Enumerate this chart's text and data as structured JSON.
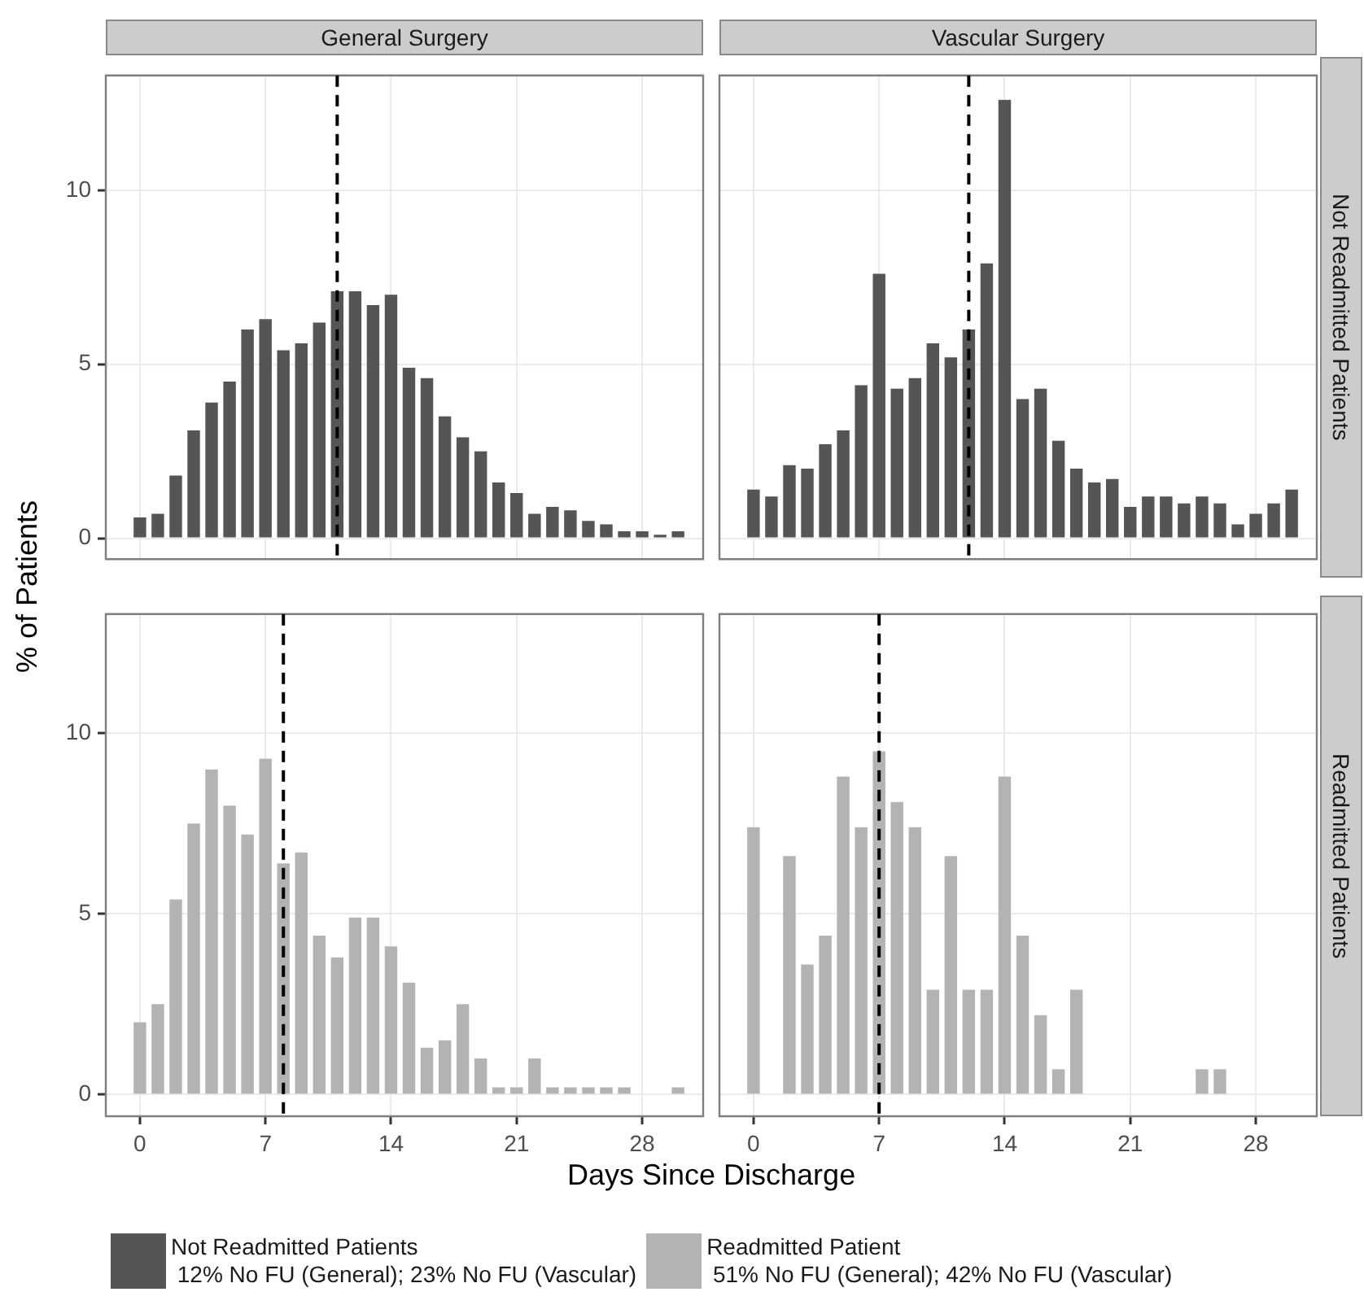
{
  "chart_data": [
    {
      "type": "bar",
      "title": "General Surgery",
      "ylabel": "% of Patients",
      "x": [
        0,
        1,
        2,
        3,
        4,
        5,
        6,
        7,
        8,
        9,
        10,
        11,
        12,
        13,
        14,
        15,
        16,
        17,
        18,
        19,
        20,
        21,
        22,
        23,
        24,
        25,
        26,
        27,
        28,
        29,
        30
      ],
      "series": [
        {
          "name": "Not Readmitted Patients\n 12% No FU (General); 23% No FU (Vascular)",
          "color": "#555555",
          "values": [
            0.6,
            0.7,
            1.8,
            3.1,
            3.9,
            4.5,
            6.0,
            6.3,
            5.4,
            5.6,
            6.2,
            7.1,
            7.1,
            6.7,
            7.0,
            4.9,
            4.6,
            3.5,
            2.9,
            2.5,
            1.6,
            1.3,
            0.7,
            0.9,
            0.8,
            0.5,
            0.4,
            0.2,
            0.2,
            0.1,
            0.2
          ]
        }
      ],
      "xlim": [
        -1.9,
        31.4
      ],
      "xticks": [
        0,
        7,
        14,
        21,
        28
      ],
      "ylim": [
        -0.6,
        13.3
      ],
      "yticks": [
        0,
        5,
        10
      ],
      "grid": true,
      "legend": "bottom",
      "tick_labels": "y",
      "ref_lines": [
        {
          "axis": "x",
          "value": 11,
          "line_style": "dashed"
        }
      ]
    },
    {
      "type": "bar",
      "title": "Vascular Surgery",
      "annotations": [
        "Not Readmitted Patients"
      ],
      "x": [
        0,
        1,
        2,
        3,
        4,
        5,
        6,
        7,
        8,
        9,
        10,
        11,
        12,
        13,
        14,
        15,
        16,
        17,
        18,
        19,
        20,
        21,
        22,
        23,
        24,
        25,
        26,
        27,
        28,
        29,
        30
      ],
      "series": [
        {
          "color": "#555555",
          "values": [
            1.4,
            1.2,
            2.1,
            2.0,
            2.7,
            3.1,
            4.4,
            7.6,
            4.3,
            4.6,
            5.6,
            5.2,
            6.0,
            7.9,
            12.6,
            4.0,
            4.3,
            2.8,
            2.0,
            1.6,
            1.7,
            0.9,
            1.2,
            1.2,
            1.0,
            1.2,
            1.0,
            0.4,
            0.7,
            1.0,
            1.4
          ]
        }
      ],
      "xlim": [
        -1.9,
        31.4
      ],
      "xticks": [
        0,
        7,
        14,
        21,
        28
      ],
      "ylim": [
        -0.6,
        13.3
      ],
      "yticks": [
        0,
        5,
        10
      ],
      "grid": true,
      "tick_labels": false,
      "ref_lines": [
        {
          "axis": "x",
          "value": 12,
          "line_style": "dashed"
        }
      ]
    },
    {
      "type": "bar",
      "xlabel": "Days Since Discharge",
      "x": [
        0,
        1,
        2,
        3,
        4,
        5,
        6,
        7,
        8,
        9,
        10,
        11,
        12,
        13,
        14,
        15,
        16,
        17,
        18,
        19,
        20,
        21,
        22,
        23,
        24,
        25,
        26,
        27,
        28,
        29,
        30
      ],
      "series": [
        {
          "name": "Readmitted Patient\n 51% No FU (General); 42% No FU (Vascular)",
          "color": "#b3b3b3",
          "values": [
            2.0,
            2.5,
            5.4,
            7.5,
            9.0,
            8.0,
            7.2,
            9.3,
            6.4,
            6.7,
            4.4,
            3.8,
            4.9,
            4.9,
            4.1,
            3.1,
            1.3,
            1.5,
            2.5,
            1.0,
            0.2,
            0.2,
            1.0,
            0.2,
            0.2,
            0.2,
            0.2,
            0.2,
            0,
            0,
            0.2
          ]
        }
      ],
      "xlim": [
        -1.9,
        31.4
      ],
      "xticks": [
        0,
        7,
        14,
        21,
        28
      ],
      "ylim": [
        -0.6,
        13.3
      ],
      "yticks": [
        0,
        5,
        10
      ],
      "grid": true,
      "legend": "bottom",
      "ref_lines": [
        {
          "axis": "x",
          "value": 8,
          "line_style": "dashed"
        }
      ]
    },
    {
      "type": "bar",
      "annotations": [
        "Readmitted Patients"
      ],
      "x": [
        0,
        1,
        2,
        3,
        4,
        5,
        6,
        7,
        8,
        9,
        10,
        11,
        12,
        13,
        14,
        15,
        16,
        17,
        18,
        19,
        20,
        21,
        22,
        23,
        24,
        25,
        26,
        27,
        28,
        29,
        30
      ],
      "series": [
        {
          "color": "#b3b3b3",
          "values": [
            7.4,
            0,
            6.6,
            3.6,
            4.4,
            8.8,
            7.4,
            9.5,
            8.1,
            7.4,
            2.9,
            6.6,
            2.9,
            2.9,
            8.8,
            4.4,
            2.2,
            0.7,
            2.9,
            0,
            0,
            0,
            0,
            0,
            0,
            0.7,
            0.7,
            0,
            0,
            0,
            0
          ]
        }
      ],
      "xlim": [
        -1.9,
        31.4
      ],
      "xticks": [
        0,
        7,
        14,
        21,
        28
      ],
      "ylim": [
        -0.6,
        13.3
      ],
      "yticks": [
        0,
        5,
        10
      ],
      "grid": true,
      "tick_labels": "x",
      "ref_lines": [
        {
          "axis": "x",
          "value": 7,
          "line_style": "dashed"
        }
      ]
    }
  ]
}
